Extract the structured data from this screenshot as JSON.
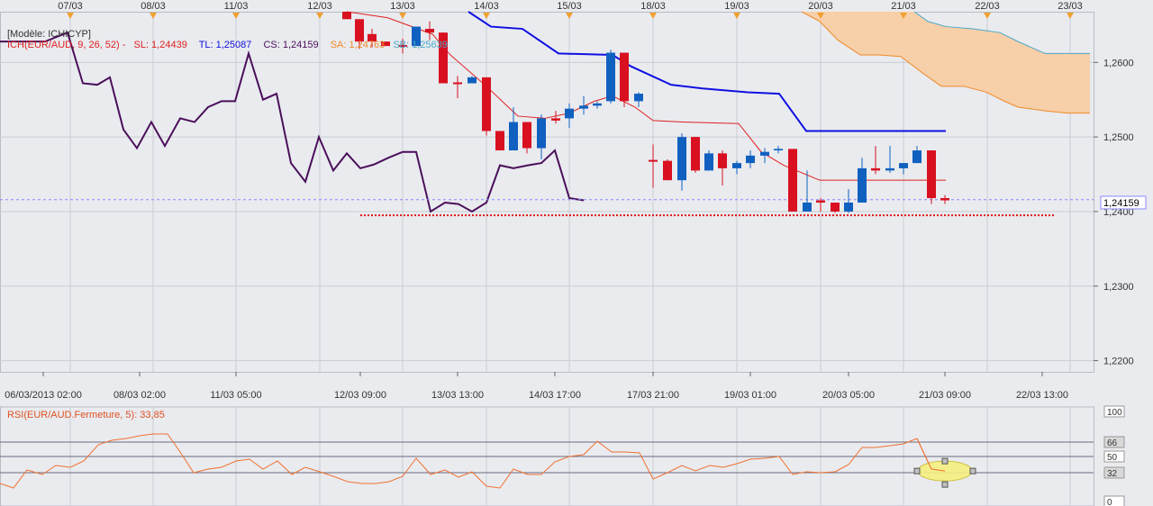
{
  "colors": {
    "bg": "#e9ebef",
    "grid": "#c9ccd3",
    "up": "#1060c0",
    "down": "#d81020",
    "tenkan": "#e02020",
    "kijun": "#1010e0",
    "chikou": "#4b0f5a",
    "span_a": "#f08a2a",
    "span_b": "#4aa8c8",
    "cloud": "#f7cfa8",
    "rsi": "#f07030",
    "sl_line": "#e01010",
    "current_line": "#8a8aff",
    "text": "#333333",
    "marker": "#f0a030"
  },
  "header": {
    "model": "[Modèle: ICHICYP]",
    "ich_label": "ICH(EUR/AUD, 9, 26, 52) -",
    "sl": "SL: 1,24439",
    "tl": "TL: 1,25087",
    "cs": "CS: 1,24159",
    "sa": "SA: 1,24763",
    "sb": "SB: 1,25639"
  },
  "price_box": "1,24159",
  "rsi_label": "RSI(EUR/AUD.Fermeture, 5): 33,85",
  "chart_data": [
    {
      "type": "candlestick",
      "instrument": "EUR/AUD",
      "indicator": "Ichimoku (9, 26, 52)",
      "top_dates": [
        "07/03",
        "08/03",
        "11/03",
        "12/03",
        "13/03",
        "14/03",
        "15/03",
        "18/03",
        "19/03",
        "20/03",
        "21/03",
        "22/03",
        "23/03"
      ],
      "x_ticks": [
        "06/03/2013 02:00",
        "08/03 02:00",
        "11/03 05:00",
        "12/03 09:00",
        "13/03 13:00",
        "14/03 17:00",
        "17/03 21:00",
        "19/03 01:00",
        "20/03 05:00",
        "21/03 09:00",
        "22/03 13:00"
      ],
      "y_ticks": [
        "1,2600",
        "1,2500",
        "1,2400",
        "1,2300",
        "1,2200"
      ],
      "ylim": [
        1.2185,
        1.2668
      ],
      "current_price": 1.24159,
      "support_level": 1.2395,
      "candles": [
        {
          "t": 385,
          "o": 1.2668,
          "h": 1.2668,
          "l": 1.2658,
          "c": 1.2658
        },
        {
          "t": 399,
          "o": 1.2658,
          "h": 1.2658,
          "l": 1.2618,
          "c": 1.2628
        },
        {
          "t": 413,
          "o": 1.2638,
          "h": 1.2645,
          "l": 1.262,
          "c": 1.2628
        },
        {
          "t": 428,
          "o": 1.2628,
          "h": 1.2628,
          "l": 1.2622,
          "c": 1.2622
        },
        {
          "t": 447,
          "o": 1.2622,
          "h": 1.2632,
          "l": 1.2612,
          "c": 1.2622
        },
        {
          "t": 462,
          "o": 1.2622,
          "h": 1.2648,
          "l": 1.2622,
          "c": 1.2648
        },
        {
          "t": 477,
          "o": 1.2645,
          "h": 1.2655,
          "l": 1.263,
          "c": 1.264
        },
        {
          "t": 492,
          "o": 1.264,
          "h": 1.264,
          "l": 1.2572,
          "c": 1.2572
        },
        {
          "t": 508,
          "o": 1.2572,
          "h": 1.2582,
          "l": 1.2552,
          "c": 1.2572
        },
        {
          "t": 524,
          "o": 1.2572,
          "h": 1.2582,
          "l": 1.2572,
          "c": 1.258
        },
        {
          "t": 540,
          "o": 1.258,
          "h": 1.258,
          "l": 1.2502,
          "c": 1.2508
        },
        {
          "t": 555,
          "o": 1.2508,
          "h": 1.2508,
          "l": 1.2482,
          "c": 1.2482
        },
        {
          "t": 570,
          "o": 1.2482,
          "h": 1.254,
          "l": 1.2482,
          "c": 1.252
        },
        {
          "t": 585,
          "o": 1.252,
          "h": 1.252,
          "l": 1.2478,
          "c": 1.2485
        },
        {
          "t": 601,
          "o": 1.2485,
          "h": 1.253,
          "l": 1.247,
          "c": 1.2525
        },
        {
          "t": 617,
          "o": 1.2525,
          "h": 1.2535,
          "l": 1.2518,
          "c": 1.2522
        },
        {
          "t": 632,
          "o": 1.2525,
          "h": 1.2545,
          "l": 1.2512,
          "c": 1.2538
        },
        {
          "t": 648,
          "o": 1.2538,
          "h": 1.2555,
          "l": 1.253,
          "c": 1.2542
        },
        {
          "t": 663,
          "o": 1.2542,
          "h": 1.2548,
          "l": 1.2538,
          "c": 1.2545
        },
        {
          "t": 678,
          "o": 1.2548,
          "h": 1.2617,
          "l": 1.2545,
          "c": 1.2613
        },
        {
          "t": 693,
          "o": 1.2613,
          "h": 1.2613,
          "l": 1.254,
          "c": 1.2548
        },
        {
          "t": 709,
          "o": 1.2548,
          "h": 1.256,
          "l": 1.254,
          "c": 1.2558
        },
        {
          "t": 725,
          "o": 1.2468,
          "h": 1.249,
          "l": 1.2432,
          "c": 1.2468
        },
        {
          "t": 741,
          "o": 1.2468,
          "h": 1.247,
          "l": 1.2442,
          "c": 1.2442
        },
        {
          "t": 757,
          "o": 1.2442,
          "h": 1.2505,
          "l": 1.2428,
          "c": 1.25
        },
        {
          "t": 772,
          "o": 1.25,
          "h": 1.25,
          "l": 1.2452,
          "c": 1.2455
        },
        {
          "t": 787,
          "o": 1.2455,
          "h": 1.2482,
          "l": 1.2455,
          "c": 1.2478
        },
        {
          "t": 802,
          "o": 1.2478,
          "h": 1.2482,
          "l": 1.2435,
          "c": 1.2458
        },
        {
          "t": 818,
          "o": 1.2458,
          "h": 1.2468,
          "l": 1.245,
          "c": 1.2465
        },
        {
          "t": 833,
          "o": 1.2465,
          "h": 1.2482,
          "l": 1.2458,
          "c": 1.2475
        },
        {
          "t": 849,
          "o": 1.2475,
          "h": 1.2485,
          "l": 1.2465,
          "c": 1.248
        },
        {
          "t": 864,
          "o": 1.2482,
          "h": 1.2488,
          "l": 1.2478,
          "c": 1.2484
        },
        {
          "t": 880,
          "o": 1.2484,
          "h": 1.2484,
          "l": 1.24,
          "c": 1.24
        },
        {
          "t": 896,
          "o": 1.24,
          "h": 1.2455,
          "l": 1.24,
          "c": 1.2412
        },
        {
          "t": 911,
          "o": 1.2415,
          "h": 1.2418,
          "l": 1.24,
          "c": 1.2412
        },
        {
          "t": 927,
          "o": 1.2412,
          "h": 1.2412,
          "l": 1.2398,
          "c": 1.24
        },
        {
          "t": 942,
          "o": 1.24,
          "h": 1.243,
          "l": 1.2398,
          "c": 1.2412
        },
        {
          "t": 957,
          "o": 1.2412,
          "h": 1.2472,
          "l": 1.2412,
          "c": 1.2458
        },
        {
          "t": 972,
          "o": 1.2458,
          "h": 1.2488,
          "l": 1.245,
          "c": 1.2455
        },
        {
          "t": 988,
          "o": 1.2455,
          "h": 1.2488,
          "l": 1.2452,
          "c": 1.2458
        },
        {
          "t": 1003,
          "o": 1.2458,
          "h": 1.2465,
          "l": 1.245,
          "c": 1.2465
        },
        {
          "t": 1018,
          "o": 1.2465,
          "h": 1.2488,
          "l": 1.2465,
          "c": 1.2482
        },
        {
          "t": 1034,
          "o": 1.2482,
          "h": 1.2482,
          "l": 1.241,
          "c": 1.2418
        },
        {
          "t": 1049,
          "o": 1.2418,
          "h": 1.2422,
          "l": 1.241,
          "c": 1.2415
        }
      ],
      "tenkan": [
        [
          385,
          1.2668
        ],
        [
          430,
          1.266
        ],
        [
          480,
          1.2638
        ],
        [
          500,
          1.261
        ],
        [
          540,
          1.2568
        ],
        [
          560,
          1.2545
        ],
        [
          575,
          1.2528
        ],
        [
          605,
          1.2525
        ],
        [
          632,
          1.2532
        ],
        [
          660,
          1.2548
        ],
        [
          680,
          1.2555
        ],
        [
          705,
          1.254
        ],
        [
          725,
          1.2522
        ],
        [
          760,
          1.252
        ],
        [
          820,
          1.2518
        ],
        [
          845,
          1.248
        ],
        [
          870,
          1.2462
        ],
        [
          910,
          1.2442
        ],
        [
          1050,
          1.2442
        ]
      ],
      "kijun": [
        [
          520,
          1.2668
        ],
        [
          545,
          1.2648
        ],
        [
          580,
          1.2645
        ],
        [
          620,
          1.2612
        ],
        [
          680,
          1.261
        ],
        [
          700,
          1.2595
        ],
        [
          745,
          1.257
        ],
        [
          780,
          1.2565
        ],
        [
          830,
          1.256
        ],
        [
          865,
          1.2558
        ],
        [
          895,
          1.2508
        ],
        [
          1050,
          1.2508
        ]
      ],
      "chikou": [
        [
          0,
          1.2628
        ],
        [
          50,
          1.2628
        ],
        [
          75,
          1.264
        ],
        [
          92,
          1.2572
        ],
        [
          108,
          1.257
        ],
        [
          122,
          1.258
        ],
        [
          137,
          1.251
        ],
        [
          152,
          1.2485
        ],
        [
          168,
          1.252
        ],
        [
          183,
          1.2488
        ],
        [
          200,
          1.2525
        ],
        [
          216,
          1.252
        ],
        [
          231,
          1.254
        ],
        [
          246,
          1.2548
        ],
        [
          261,
          1.2548
        ],
        [
          276,
          1.2612
        ],
        [
          292,
          1.255
        ],
        [
          307,
          1.2558
        ],
        [
          323,
          1.2465
        ],
        [
          339,
          1.244
        ],
        [
          354,
          1.25
        ],
        [
          370,
          1.2455
        ],
        [
          385,
          1.2478
        ],
        [
          400,
          1.2458
        ],
        [
          415,
          1.2463
        ],
        [
          431,
          1.2472
        ],
        [
          447,
          1.248
        ],
        [
          462,
          1.248
        ],
        [
          478,
          1.24
        ],
        [
          494,
          1.2412
        ],
        [
          509,
          1.241
        ],
        [
          524,
          1.24
        ],
        [
          540,
          1.2412
        ],
        [
          555,
          1.2462
        ],
        [
          570,
          1.2458
        ],
        [
          586,
          1.2462
        ],
        [
          601,
          1.2465
        ],
        [
          616,
          1.2482
        ],
        [
          632,
          1.2418
        ],
        [
          648,
          1.2415
        ]
      ],
      "span_a": [
        [
          890,
          1.2668
        ],
        [
          910,
          1.2655
        ],
        [
          930,
          1.263
        ],
        [
          955,
          1.261
        ],
        [
          975,
          1.261
        ],
        [
          1000,
          1.2608
        ],
        [
          1025,
          1.2585
        ],
        [
          1045,
          1.2568
        ],
        [
          1070,
          1.2568
        ],
        [
          1095,
          1.256
        ],
        [
          1115,
          1.2548
        ],
        [
          1130,
          1.254
        ],
        [
          1160,
          1.2535
        ],
        [
          1185,
          1.2532
        ],
        [
          1210,
          1.2532
        ]
      ],
      "span_b": [
        [
          1015,
          1.2668
        ],
        [
          1030,
          1.2655
        ],
        [
          1050,
          1.2648
        ],
        [
          1080,
          1.2645
        ],
        [
          1110,
          1.264
        ],
        [
          1130,
          1.2628
        ],
        [
          1160,
          1.2612
        ],
        [
          1210,
          1.2612
        ]
      ]
    },
    {
      "type": "line",
      "name": "RSI(EUR/AUD.Fermeture, 5)",
      "last_value": 33.85,
      "y_ticks": [
        "100",
        "66",
        "50",
        "32",
        "0"
      ],
      "ylim": [
        0,
        100
      ],
      "levels": [
        66,
        50,
        32
      ],
      "x": [
        0,
        15,
        30,
        47,
        62,
        78,
        93,
        109,
        124,
        140,
        155,
        170,
        186,
        200,
        215,
        231,
        246,
        262,
        277,
        292,
        308,
        324,
        339,
        355,
        370,
        386,
        402,
        417,
        432,
        447,
        462,
        478,
        494,
        509,
        524,
        540,
        555,
        570,
        586,
        601,
        616,
        632,
        648,
        663,
        679,
        694,
        710,
        725,
        741,
        757,
        772,
        788,
        803,
        818,
        833,
        849,
        865,
        880,
        895,
        911,
        927,
        942,
        957,
        972,
        988,
        1003,
        1018,
        1034,
        1049
      ],
      "values": [
        20,
        15,
        35,
        30,
        40,
        38,
        45,
        63,
        68,
        70,
        73,
        75,
        75,
        55,
        32,
        36,
        38,
        45,
        47,
        36,
        45,
        30,
        38,
        33,
        28,
        22,
        20,
        20,
        22,
        28,
        48,
        30,
        35,
        27,
        33,
        17,
        15,
        36,
        30,
        30,
        44,
        50,
        52,
        67,
        55,
        55,
        54,
        25,
        32,
        40,
        34,
        40,
        38,
        42,
        47,
        48,
        50,
        30,
        33,
        32,
        33,
        41,
        60,
        60,
        62,
        64,
        70,
        36,
        34
      ]
    }
  ]
}
